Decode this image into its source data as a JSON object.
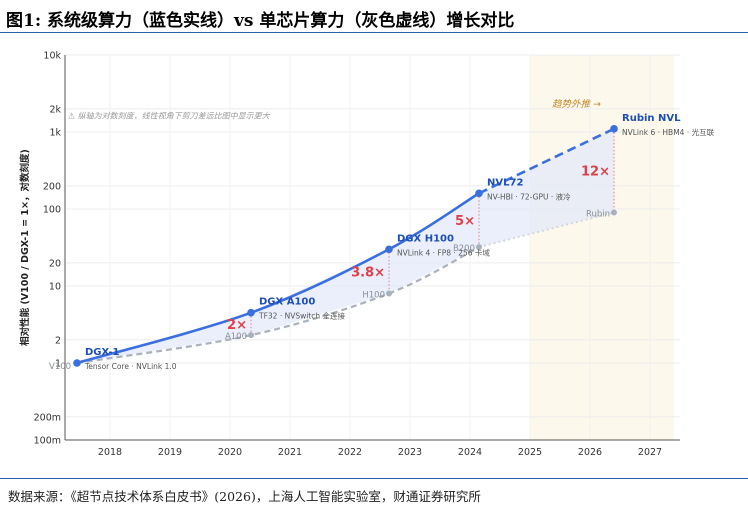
{
  "header": {
    "title": "图1: 系统级算力（蓝色实线）vs 单芯片算力（灰色虚线）增长对比"
  },
  "footer": {
    "source": "数据来源：《超节点技术体系白皮书》(2026)，上海人工智能实验室，财通证券研究所"
  },
  "colors": {
    "system": "#3b6fe0",
    "chip": "#a9b1bc",
    "ratio": "#e0404a",
    "forecast_bg": "#fdf8ec",
    "fill": "#e3eafa"
  },
  "chart_data": {
    "type": "line",
    "title": "",
    "xlabel": "",
    "ylabel": "相对性能 (V100 / DGX-1 = 1×，对数刻度)",
    "yscale": "log",
    "ylim": [
      0.1,
      10000
    ],
    "xlim": [
      2017.25,
      2027.5
    ],
    "yticks": [
      "100m",
      "200m",
      "1",
      "2",
      "10",
      "20",
      "100",
      "200",
      "1k",
      "2k",
      "10k"
    ],
    "xticks": [
      "2018",
      "2019",
      "2020",
      "2021",
      "2022",
      "2023",
      "2024",
      "2025",
      "2026",
      "2027"
    ],
    "grid": true,
    "forecast_region": {
      "x": [
        2025,
        2027.4
      ],
      "label": "趋势外推 →"
    },
    "note": "⚠ 纵轴为对数刻度，线性视角下剪刀差远比图中显示更大",
    "series": [
      {
        "name": "系统级算力",
        "style": "solid",
        "points": [
          {
            "x": 2017.45,
            "y": 1,
            "label": "DGX-1",
            "sub": "Tensor Core · NVLink 1.0"
          },
          {
            "x": 2020.35,
            "y": 4.5,
            "label": "DGX A100",
            "sub": "TF32 · NVSwitch 全连接"
          },
          {
            "x": 2022.65,
            "y": 30,
            "label": "DGX H100",
            "sub": "NVLink 4 · FP8 · 256 卡域"
          },
          {
            "x": 2024.15,
            "y": 160,
            "label": "NVL72",
            "sub": "NV-HBI · 72-GPU · 液冷"
          },
          {
            "x": 2026.4,
            "y": 1100,
            "label": "Rubin NVL",
            "sub": "NVLink 6 · HBM4 · 光互联"
          }
        ]
      },
      {
        "name": "单芯片算力",
        "style": "dashed",
        "points": [
          {
            "x": 2017.45,
            "y": 1,
            "label": "V100"
          },
          {
            "x": 2020.35,
            "y": 2.3,
            "label": "A100"
          },
          {
            "x": 2022.65,
            "y": 8,
            "label": "H100"
          },
          {
            "x": 2024.15,
            "y": 32,
            "label": "B200"
          },
          {
            "x": 2026.4,
            "y": 90,
            "label": "Rubin"
          }
        ]
      }
    ],
    "ratios": [
      {
        "x": 2020.35,
        "label": "2×"
      },
      {
        "x": 2022.65,
        "label": "3.8×"
      },
      {
        "x": 2024.15,
        "label": "5×"
      },
      {
        "x": 2026.4,
        "label": "12×"
      }
    ]
  }
}
